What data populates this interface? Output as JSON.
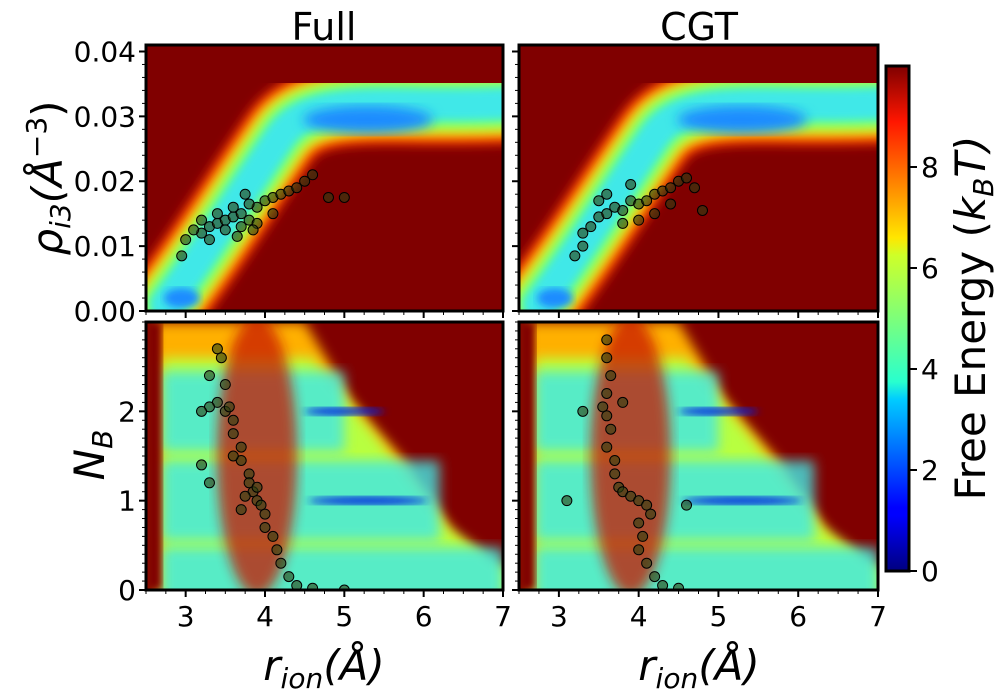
{
  "chart_data": {
    "type": "heatmap",
    "panel_titles": [
      "Full",
      "CGT"
    ],
    "colorbar": {
      "label": "Free Energy ($k_BT$)",
      "label_plain": "Free Energy (",
      "label_var": "k",
      "label_sub": "B",
      "label_tail": "T)",
      "range": [
        0,
        10
      ],
      "ticks": [
        0,
        2,
        4,
        6,
        8
      ],
      "colormap": "jet",
      "levels": 20
    },
    "x_axis": {
      "label_var": "r",
      "label_sub": "ion",
      "label_unit": "(Å)",
      "range": [
        2.5,
        7
      ],
      "ticks": [
        3,
        4,
        5,
        6,
        7
      ]
    },
    "top_row": {
      "y_label_var": "ρ",
      "y_label_sub": "i3",
      "y_label_unit": "(Å",
      "y_label_sup": "−3",
      "y_label_close": ")",
      "y_range": [
        0,
        0.041
      ],
      "y_ticks": [
        0.0,
        0.01,
        0.02,
        0.03,
        0.04
      ],
      "y_tick_labels": [
        "0.00",
        "0.01",
        "0.02",
        "0.03",
        "0.04"
      ]
    },
    "bottom_row": {
      "y_label_var": "N",
      "y_label_sub": "B",
      "y_range": [
        0,
        3
      ],
      "y_ticks": [
        0,
        1,
        2
      ],
      "y_tick_labels": [
        "0",
        "1",
        "2"
      ]
    },
    "panels": [
      {
        "id": "full-rho",
        "title": "Full",
        "scatter": [
          [
            3.2,
            0.012
          ],
          [
            3.3,
            0.013
          ],
          [
            3.4,
            0.0135
          ],
          [
            3.5,
            0.014
          ],
          [
            3.6,
            0.0145
          ],
          [
            3.7,
            0.015
          ],
          [
            3.8,
            0.014
          ],
          [
            3.9,
            0.016
          ],
          [
            4.0,
            0.017
          ],
          [
            4.1,
            0.0175
          ],
          [
            4.2,
            0.018
          ],
          [
            4.3,
            0.0185
          ],
          [
            4.4,
            0.019
          ],
          [
            4.5,
            0.02
          ],
          [
            4.6,
            0.021
          ],
          [
            3.3,
            0.011
          ],
          [
            3.5,
            0.0125
          ],
          [
            3.7,
            0.013
          ],
          [
            3.9,
            0.0135
          ],
          [
            4.1,
            0.015
          ],
          [
            3.6,
            0.016
          ],
          [
            3.8,
            0.0165
          ],
          [
            3.4,
            0.015
          ],
          [
            3.2,
            0.014
          ],
          [
            3.1,
            0.0125
          ],
          [
            3.0,
            0.011
          ],
          [
            2.95,
            0.0085
          ],
          [
            4.8,
            0.0175
          ],
          [
            5.0,
            0.0175
          ],
          [
            3.75,
            0.018
          ],
          [
            3.85,
            0.0125
          ],
          [
            3.65,
            0.0115
          ]
        ]
      },
      {
        "id": "cgt-rho",
        "title": "CGT",
        "scatter": [
          [
            3.3,
            0.012
          ],
          [
            3.4,
            0.013
          ],
          [
            3.5,
            0.0145
          ],
          [
            3.6,
            0.015
          ],
          [
            3.7,
            0.016
          ],
          [
            3.8,
            0.0155
          ],
          [
            3.9,
            0.017
          ],
          [
            4.0,
            0.0165
          ],
          [
            4.1,
            0.017
          ],
          [
            4.2,
            0.018
          ],
          [
            4.3,
            0.0185
          ],
          [
            4.4,
            0.019
          ],
          [
            4.5,
            0.02
          ],
          [
            4.6,
            0.0205
          ],
          [
            4.4,
            0.0165
          ],
          [
            4.2,
            0.015
          ],
          [
            3.6,
            0.018
          ],
          [
            3.5,
            0.017
          ],
          [
            3.8,
            0.0135
          ],
          [
            3.3,
            0.01
          ],
          [
            3.2,
            0.0085
          ],
          [
            4.0,
            0.014
          ],
          [
            4.8,
            0.0155
          ],
          [
            4.7,
            0.019
          ],
          [
            3.9,
            0.0195
          ]
        ]
      },
      {
        "id": "full-nb",
        "title": "",
        "scatter": [
          [
            3.4,
            2.7
          ],
          [
            3.45,
            2.6
          ],
          [
            3.3,
            2.4
          ],
          [
            3.5,
            2.3
          ],
          [
            3.4,
            2.1
          ],
          [
            3.5,
            2.0
          ],
          [
            3.6,
            1.9
          ],
          [
            3.6,
            1.75
          ],
          [
            3.7,
            1.6
          ],
          [
            3.7,
            1.45
          ],
          [
            3.8,
            1.3
          ],
          [
            3.8,
            1.2
          ],
          [
            3.85,
            1.1
          ],
          [
            3.9,
            1.0
          ],
          [
            3.75,
            1.05
          ],
          [
            3.95,
            0.95
          ],
          [
            4.0,
            0.85
          ],
          [
            4.0,
            0.7
          ],
          [
            4.1,
            0.6
          ],
          [
            4.15,
            0.45
          ],
          [
            4.2,
            0.3
          ],
          [
            4.3,
            0.15
          ],
          [
            4.4,
            0.05
          ],
          [
            4.6,
            0.02
          ],
          [
            5.0,
            0.0
          ],
          [
            3.2,
            1.4
          ],
          [
            3.3,
            1.2
          ],
          [
            3.6,
            1.5
          ],
          [
            3.9,
            1.15
          ],
          [
            3.7,
            0.9
          ],
          [
            3.55,
            2.05
          ],
          [
            3.3,
            2.05
          ],
          [
            3.2,
            2.0
          ]
        ]
      },
      {
        "id": "cgt-nb",
        "title": "",
        "scatter": [
          [
            3.6,
            2.8
          ],
          [
            3.6,
            2.6
          ],
          [
            3.65,
            2.4
          ],
          [
            3.6,
            2.2
          ],
          [
            3.55,
            2.05
          ],
          [
            3.6,
            1.95
          ],
          [
            3.65,
            1.8
          ],
          [
            3.6,
            1.6
          ],
          [
            3.7,
            1.45
          ],
          [
            3.7,
            1.3
          ],
          [
            3.75,
            1.15
          ],
          [
            3.8,
            1.1
          ],
          [
            3.9,
            1.05
          ],
          [
            4.0,
            1.0
          ],
          [
            4.1,
            0.95
          ],
          [
            4.15,
            0.85
          ],
          [
            4.0,
            0.75
          ],
          [
            4.05,
            0.6
          ],
          [
            4.0,
            0.45
          ],
          [
            4.1,
            0.3
          ],
          [
            4.2,
            0.15
          ],
          [
            4.3,
            0.05
          ],
          [
            4.5,
            0.02
          ],
          [
            3.1,
            1.0
          ],
          [
            4.6,
            0.95
          ],
          [
            3.3,
            2.0
          ],
          [
            3.8,
            2.1
          ]
        ]
      }
    ]
  }
}
